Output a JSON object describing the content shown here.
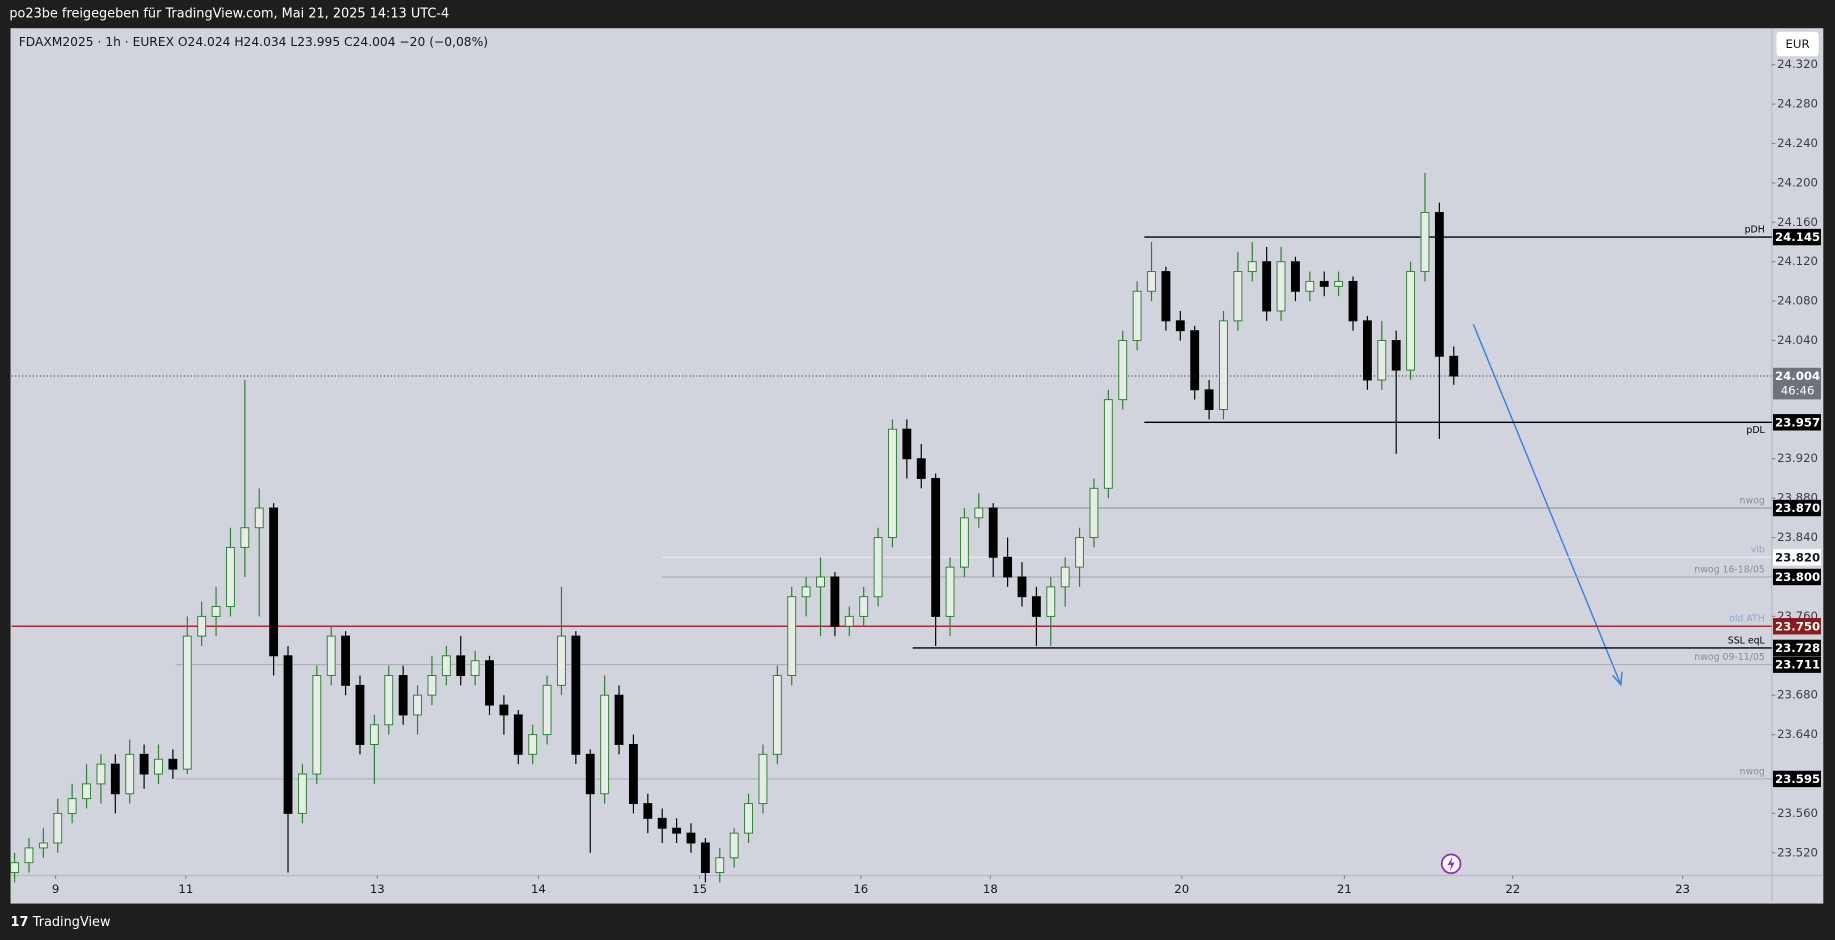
{
  "chart_data": {
    "type": "candlestick",
    "header": "po23be freigegeben für TradingView.com, Mai 21, 2025 14:13 UTC-4",
    "legend": "FDAXM2025 · 1h · EUREX  O24.024  H24.034  L23.995  C24.004  −20 (−0,08%)",
    "currency": "EUR",
    "footer": "TradingView",
    "up_color": "#2e7d32",
    "down_color": "#000000",
    "xlim": [
      -0.2,
      122.1
    ],
    "ylim": [
      23497,
      24357
    ],
    "xticks": [
      {
        "value": 2.85,
        "label": "9"
      },
      {
        "value": 11.9,
        "label": "11"
      },
      {
        "value": 25.2,
        "label": "13"
      },
      {
        "value": 36.4,
        "label": "14"
      },
      {
        "value": 47.6,
        "label": "15"
      },
      {
        "value": 58.8,
        "label": "16"
      },
      {
        "value": 67.8,
        "label": "18"
      },
      {
        "value": 81.1,
        "label": "20"
      },
      {
        "value": 92.4,
        "label": "21"
      },
      {
        "value": 104.1,
        "label": "22"
      },
      {
        "value": 115.9,
        "label": "23"
      }
    ],
    "yticks": [
      {
        "value": 24320,
        "label": "24.320"
      },
      {
        "value": 24280,
        "label": "24.280"
      },
      {
        "value": 24240,
        "label": "24.240"
      },
      {
        "value": 24200,
        "label": "24.200"
      },
      {
        "value": 24160,
        "label": "24.160"
      },
      {
        "value": 24120,
        "label": "24.120"
      },
      {
        "value": 24080,
        "label": "24.080"
      },
      {
        "value": 24040,
        "label": "24.040"
      },
      {
        "value": 23920,
        "label": "23.920"
      },
      {
        "value": 23880,
        "label": "23.880"
      },
      {
        "value": 23840,
        "label": "23.840"
      },
      {
        "value": 23760,
        "label": "23.760"
      },
      {
        "value": 23680,
        "label": "23.680"
      },
      {
        "value": 23640,
        "label": "23.640"
      },
      {
        "value": 23560,
        "label": "23.560"
      },
      {
        "value": 23520,
        "label": "23.520"
      }
    ],
    "current": {
      "value": 24004,
      "label": "24.004",
      "countdown": "46:46"
    },
    "levels": [
      {
        "name": "pDH",
        "value": 24145,
        "label": "24.145",
        "from": 78.5,
        "color": "#000000",
        "box": "#000000",
        "text_color": "#000000"
      },
      {
        "name": "pDL",
        "value": 23957,
        "label": "23.957",
        "from": 78.5,
        "color": "#000000",
        "box": "#000000",
        "text_color": "#000000"
      },
      {
        "name": "nwog",
        "value": 23870,
        "label": "23.870",
        "from": 67.3,
        "color": "#8a8d94",
        "box": "#000000",
        "text_color": "#8a8d94"
      },
      {
        "name": "vib",
        "value": 23820,
        "label": "23.820",
        "from": 45,
        "color": "#eceef3",
        "box": "#ffffff",
        "text_color": "#8fa6d8"
      },
      {
        "name": "nwog 16-18/05",
        "value": 23800,
        "label": "23.800",
        "from": 45,
        "color": "#a0a3aa",
        "box": "#000000",
        "text_color": "#8a8d94"
      },
      {
        "name": "old ATH",
        "value": 23750,
        "label": "23.750",
        "from": -0.2,
        "color": "#b22833",
        "box": "#8b1a1a",
        "text_color": "#8fa6d8"
      },
      {
        "name": "SSL eqL",
        "value": 23728,
        "label": "23.728",
        "from": 62.4,
        "color": "#000000",
        "box": "#000000",
        "text_color": "#000000"
      },
      {
        "name": "nwog 09-11/05",
        "value": 23711,
        "label": "23.711",
        "from": 11.2,
        "color": "#a0a3aa",
        "box": "#000000",
        "text_color": "#8a8d94"
      },
      {
        "name": "nwog",
        "value": 23595,
        "label": "23.595",
        "from": 11.2,
        "color": "#a0a3aa",
        "box": "#000000",
        "text_color": "#8a8d94"
      }
    ],
    "ohlc": [
      [
        23500,
        23520,
        23490,
        23510
      ],
      [
        23510,
        23535,
        23500,
        23525
      ],
      [
        23525,
        23545,
        23515,
        23530
      ],
      [
        23530,
        23575,
        23520,
        23560
      ],
      [
        23560,
        23590,
        23550,
        23575
      ],
      [
        23575,
        23610,
        23565,
        23590
      ],
      [
        23590,
        23620,
        23570,
        23610
      ],
      [
        23610,
        23620,
        23560,
        23580
      ],
      [
        23580,
        23635,
        23570,
        23620
      ],
      [
        23620,
        23630,
        23585,
        23600
      ],
      [
        23600,
        23630,
        23590,
        23615
      ],
      [
        23615,
        23625,
        23595,
        23605
      ],
      [
        23605,
        23760,
        23600,
        23740
      ],
      [
        23740,
        23775,
        23730,
        23760
      ],
      [
        23760,
        23790,
        23740,
        23770
      ],
      [
        23770,
        23850,
        23760,
        23830
      ],
      [
        23830,
        24000,
        23800,
        23850
      ],
      [
        23850,
        23890,
        23760,
        23870
      ],
      [
        23870,
        23875,
        23700,
        23720
      ],
      [
        23720,
        23730,
        23500,
        23560
      ],
      [
        23560,
        23610,
        23550,
        23600
      ],
      [
        23600,
        23710,
        23590,
        23700
      ],
      [
        23700,
        23750,
        23690,
        23740
      ],
      [
        23740,
        23745,
        23680,
        23690
      ],
      [
        23690,
        23700,
        23620,
        23630
      ],
      [
        23630,
        23660,
        23590,
        23650
      ],
      [
        23650,
        23710,
        23640,
        23700
      ],
      [
        23700,
        23710,
        23650,
        23660
      ],
      [
        23660,
        23690,
        23640,
        23680
      ],
      [
        23680,
        23720,
        23670,
        23700
      ],
      [
        23700,
        23730,
        23690,
        23720
      ],
      [
        23720,
        23740,
        23690,
        23700
      ],
      [
        23700,
        23725,
        23690,
        23715
      ],
      [
        23715,
        23720,
        23660,
        23670
      ],
      [
        23670,
        23680,
        23640,
        23660
      ],
      [
        23660,
        23665,
        23610,
        23620
      ],
      [
        23620,
        23650,
        23610,
        23640
      ],
      [
        23640,
        23700,
        23630,
        23690
      ],
      [
        23690,
        23790,
        23680,
        23740
      ],
      [
        23740,
        23745,
        23610,
        23620
      ],
      [
        23620,
        23625,
        23520,
        23580
      ],
      [
        23580,
        23700,
        23570,
        23680
      ],
      [
        23680,
        23690,
        23620,
        23630
      ],
      [
        23630,
        23640,
        23560,
        23570
      ],
      [
        23570,
        23580,
        23540,
        23555
      ],
      [
        23555,
        23565,
        23530,
        23545
      ],
      [
        23545,
        23555,
        23530,
        23540
      ],
      [
        23540,
        23550,
        23520,
        23530
      ],
      [
        23530,
        23535,
        23490,
        23500
      ],
      [
        23500,
        23525,
        23490,
        23515
      ],
      [
        23515,
        23545,
        23505,
        23540
      ],
      [
        23540,
        23580,
        23530,
        23570
      ],
      [
        23570,
        23630,
        23560,
        23620
      ],
      [
        23620,
        23710,
        23610,
        23700
      ],
      [
        23700,
        23790,
        23690,
        23780
      ],
      [
        23780,
        23800,
        23760,
        23790
      ],
      [
        23790,
        23820,
        23740,
        23800
      ],
      [
        23800,
        23805,
        23740,
        23750
      ],
      [
        23750,
        23770,
        23740,
        23760
      ],
      [
        23760,
        23790,
        23750,
        23780
      ],
      [
        23780,
        23850,
        23770,
        23840
      ],
      [
        23840,
        23960,
        23830,
        23950
      ],
      [
        23950,
        23960,
        23900,
        23920
      ],
      [
        23920,
        23935,
        23890,
        23900
      ],
      [
        23900,
        23905,
        23730,
        23760
      ],
      [
        23760,
        23820,
        23740,
        23810
      ],
      [
        23810,
        23870,
        23800,
        23860
      ],
      [
        23860,
        23885,
        23850,
        23870
      ],
      [
        23870,
        23875,
        23800,
        23820
      ],
      [
        23820,
        23840,
        23790,
        23800
      ],
      [
        23800,
        23815,
        23770,
        23780
      ],
      [
        23780,
        23790,
        23730,
        23760
      ],
      [
        23760,
        23800,
        23730,
        23790
      ],
      [
        23790,
        23820,
        23770,
        23810
      ],
      [
        23810,
        23850,
        23790,
        23840
      ],
      [
        23840,
        23900,
        23830,
        23890
      ],
      [
        23890,
        23990,
        23880,
        23980
      ],
      [
        23980,
        24050,
        23970,
        24040
      ],
      [
        24040,
        24100,
        24030,
        24090
      ],
      [
        24090,
        24140,
        24080,
        24110
      ],
      [
        24110,
        24115,
        24050,
        24060
      ],
      [
        24060,
        24070,
        24040,
        24050
      ],
      [
        24050,
        24055,
        23980,
        23990
      ],
      [
        23990,
        24000,
        23960,
        23970
      ],
      [
        23970,
        24070,
        23960,
        24060
      ],
      [
        24060,
        24130,
        24050,
        24110
      ],
      [
        24110,
        24140,
        24100,
        24120
      ],
      [
        24120,
        24135,
        24060,
        24070
      ],
      [
        24070,
        24135,
        24060,
        24120
      ],
      [
        24120,
        24125,
        24080,
        24090
      ],
      [
        24090,
        24110,
        24080,
        24100
      ],
      [
        24100,
        24110,
        24085,
        24095
      ],
      [
        24095,
        24110,
        24085,
        24100
      ],
      [
        24100,
        24105,
        24050,
        24060
      ],
      [
        24060,
        24065,
        23990,
        24000
      ],
      [
        24000,
        24060,
        23990,
        24040
      ],
      [
        24040,
        24050,
        23925,
        24010
      ],
      [
        24010,
        24120,
        24000,
        24110
      ],
      [
        24110,
        24210,
        24100,
        24170
      ],
      [
        24170,
        24180,
        23940,
        24024
      ],
      [
        24024,
        24034,
        23995,
        24004
      ]
    ]
  }
}
